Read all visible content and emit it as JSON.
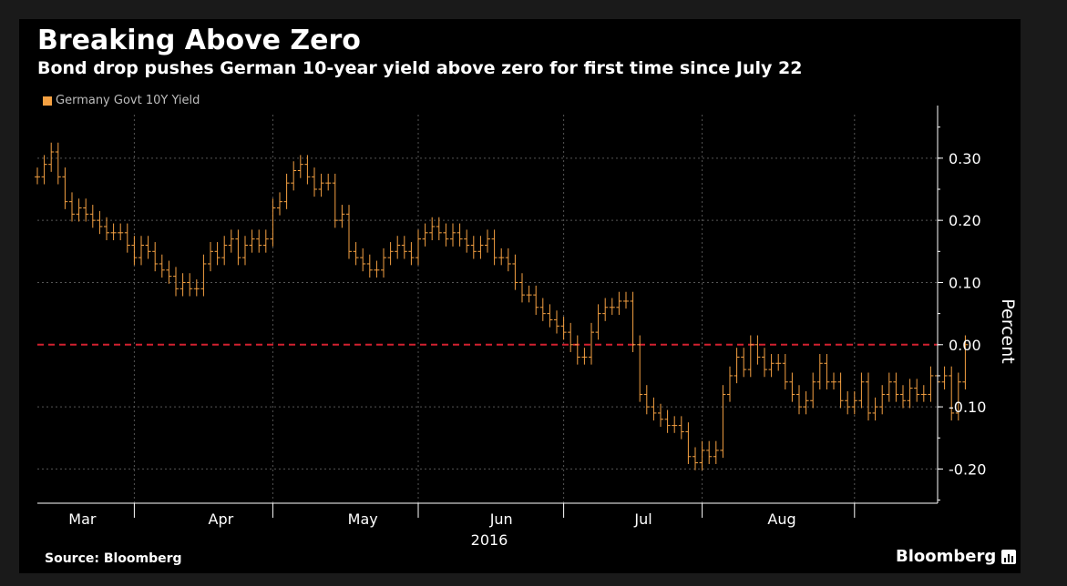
{
  "header": {
    "title": "Breaking Above Zero",
    "subtitle": "Bond drop pushes German 10-year yield above zero for first time since July 22"
  },
  "legend": {
    "label": "Germany Govt 10Y Yield",
    "color": "#f5a142"
  },
  "footer": {
    "source": "Source: Bloomberg",
    "brand": "Bloomberg"
  },
  "colors": {
    "series": "#f5a142",
    "zero_line": "#d1202f",
    "grid": "#555555",
    "text": "#ffffff"
  },
  "chart_data": {
    "type": "line",
    "title": "Breaking Above Zero",
    "subtitle": "Bond drop pushes German 10-year yield above zero for first time since July 22",
    "xlabel": "2016",
    "ylabel": "Percent",
    "ylim": [
      -0.255,
      0.37
    ],
    "yticks": [
      0.3,
      0.2,
      0.1,
      0.0,
      -0.1,
      -0.2
    ],
    "ytick_labels": [
      "0.30",
      "0.20",
      "0.10",
      "0.00",
      "-0.10",
      "-0.20"
    ],
    "x_range": [
      0,
      130
    ],
    "months": [
      {
        "label": "Mar",
        "pos": 6.5,
        "boundary": 14
      },
      {
        "label": "Apr",
        "pos": 26.5,
        "boundary": 34
      },
      {
        "label": "May",
        "pos": 47,
        "boundary": 55
      },
      {
        "label": "Jun",
        "pos": 67,
        "boundary": 76
      },
      {
        "label": "Jul",
        "pos": 87.5,
        "boundary": 96
      },
      {
        "label": "Aug",
        "pos": 107.5,
        "boundary": 118
      }
    ],
    "year_label": "2016",
    "reference_line": {
      "value": 0.0,
      "style": "dashed",
      "color": "#d1202f"
    },
    "series": [
      {
        "name": "Germany Govt 10Y Yield",
        "values": [
          0.27,
          0.29,
          0.31,
          0.27,
          0.23,
          0.21,
          0.22,
          0.21,
          0.2,
          0.19,
          0.18,
          0.18,
          0.18,
          0.16,
          0.14,
          0.16,
          0.15,
          0.13,
          0.12,
          0.11,
          0.09,
          0.1,
          0.09,
          0.09,
          0.13,
          0.15,
          0.14,
          0.16,
          0.17,
          0.14,
          0.16,
          0.17,
          0.16,
          0.17,
          0.22,
          0.23,
          0.26,
          0.28,
          0.29,
          0.27,
          0.25,
          0.26,
          0.26,
          0.2,
          0.21,
          0.15,
          0.14,
          0.13,
          0.12,
          0.12,
          0.14,
          0.15,
          0.16,
          0.15,
          0.14,
          0.17,
          0.18,
          0.19,
          0.18,
          0.17,
          0.18,
          0.17,
          0.16,
          0.15,
          0.16,
          0.17,
          0.14,
          0.14,
          0.13,
          0.1,
          0.08,
          0.08,
          0.06,
          0.05,
          0.04,
          0.03,
          0.02,
          0.0,
          -0.02,
          -0.02,
          0.02,
          0.05,
          0.06,
          0.06,
          0.07,
          0.07,
          0.0,
          -0.08,
          -0.1,
          -0.11,
          -0.12,
          -0.13,
          -0.13,
          -0.14,
          -0.18,
          -0.19,
          -0.17,
          -0.18,
          -0.17,
          -0.08,
          -0.05,
          -0.02,
          -0.04,
          0.0,
          -0.02,
          -0.04,
          -0.03,
          -0.03,
          -0.06,
          -0.08,
          -0.1,
          -0.09,
          -0.06,
          -0.03,
          -0.06,
          -0.06,
          -0.09,
          -0.1,
          -0.09,
          -0.06,
          -0.11,
          -0.1,
          -0.08,
          -0.06,
          -0.08,
          -0.09,
          -0.07,
          -0.08,
          -0.08,
          -0.05,
          -0.06,
          -0.05,
          -0.11,
          -0.06,
          0.0
        ]
      }
    ]
  }
}
